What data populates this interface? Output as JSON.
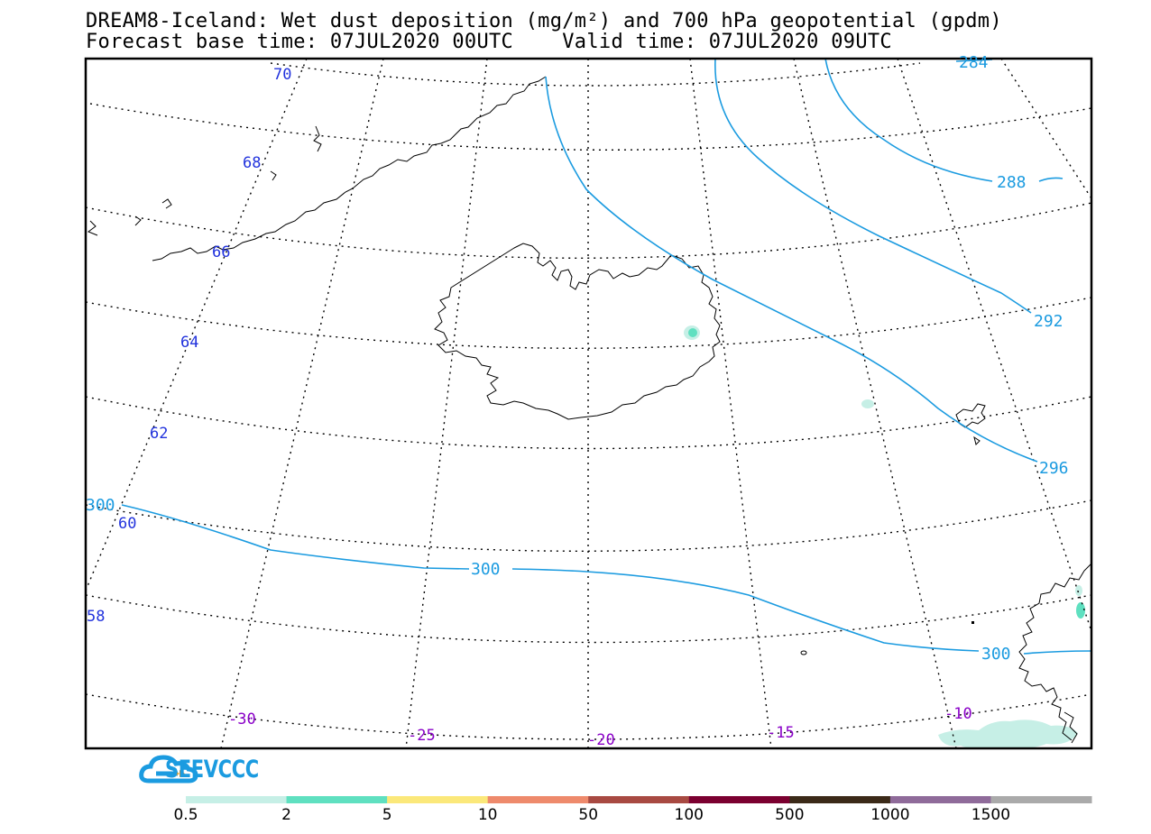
{
  "title": {
    "line1": "DREAM8-Iceland: Wet dust deposition (mg/m²) and 700 hPa geopotential (gpdm)",
    "line2": "Forecast base time: 07JUL2020 00UTC    Valid time: 07JUL2020 09UTC"
  },
  "logo": {
    "name": "SEEVCCC",
    "icon": "cloud-logo-icon",
    "color": "#1b9be0"
  },
  "latitude_labels": [
    "70",
    "68",
    "66",
    "64",
    "62",
    "60",
    "58"
  ],
  "longitude_labels": [
    "-30",
    "-25",
    "-20",
    "-15",
    "-10"
  ],
  "contour_labels": [
    "284",
    "288",
    "292",
    "296",
    "300",
    "300",
    "300"
  ],
  "colors": {
    "contour": "#1b9be0",
    "lat_label": "#2233dd",
    "lon_label": "#8a00c8"
  },
  "colorbar": {
    "labels": [
      "0.5",
      "2",
      "5",
      "10",
      "50",
      "100",
      "500",
      "1000",
      "1500"
    ],
    "colors": [
      "#c6efe6",
      "#5fe0c0",
      "#fbe87a",
      "#ee8a6c",
      "#a84a42",
      "#7b0030",
      "#3b2a18",
      "#8f6b9a",
      "#aaaaaa"
    ]
  }
}
